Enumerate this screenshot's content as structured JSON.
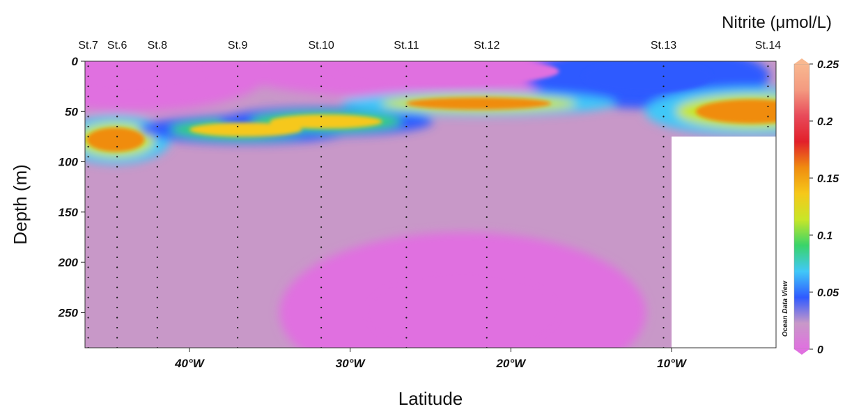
{
  "chart_data": {
    "type": "heatmap",
    "title": "Nitrite (μmol/L)",
    "xlabel": "Latitude",
    "ylabel": "Depth (m)",
    "watermark": "Ocean Data View",
    "x_range_deg_w": [
      46.5,
      3.5
    ],
    "y_range_m": [
      0,
      285
    ],
    "y_ticks": [
      {
        "value": 0,
        "label": "0"
      },
      {
        "value": 50,
        "label": "50"
      },
      {
        "value": 100,
        "label": "100"
      },
      {
        "value": 150,
        "label": "150"
      },
      {
        "value": 200,
        "label": "200"
      },
      {
        "value": 250,
        "label": "250"
      }
    ],
    "x_ticks": [
      {
        "value": 40,
        "label": "40°W"
      },
      {
        "value": 30,
        "label": "30°W"
      },
      {
        "value": 20,
        "label": "20°W"
      },
      {
        "value": 10,
        "label": "10°W"
      }
    ],
    "stations": [
      {
        "name": "St.7",
        "lon_w": 46.3
      },
      {
        "name": "St.6",
        "lon_w": 44.5
      },
      {
        "name": "St.8",
        "lon_w": 42.0
      },
      {
        "name": "St.9",
        "lon_w": 37.0
      },
      {
        "name": "St.10",
        "lon_w": 31.8
      },
      {
        "name": "St.11",
        "lon_w": 26.5
      },
      {
        "name": "St.12",
        "lon_w": 21.5
      },
      {
        "name": "St.13",
        "lon_w": 10.5
      },
      {
        "name": "St.14",
        "lon_w": 4.0
      }
    ],
    "colorbar": {
      "min": 0,
      "max": 0.25,
      "ticks": [
        {
          "value": 0,
          "label": "0"
        },
        {
          "value": 0.05,
          "label": "0.05"
        },
        {
          "value": 0.1,
          "label": "0.1"
        },
        {
          "value": 0.15,
          "label": "0.15"
        },
        {
          "value": 0.2,
          "label": "0.2"
        },
        {
          "value": 0.25,
          "label": "0.25"
        }
      ],
      "colors": [
        "#e070e0",
        "#c898c8",
        "#2f5aff",
        "#41c8f8",
        "#39d46a",
        "#c8e628",
        "#f6c81a",
        "#f08c10",
        "#e2202a",
        "#e84a5a",
        "#f49a80",
        "#f8b890"
      ]
    },
    "no_data_region": {
      "lon_w_min": 3.5,
      "lon_w_max": 10.0,
      "depth_min": 75,
      "depth_max": 285
    },
    "background_nitrite": 0.02,
    "features": [
      {
        "name": "surface-low-west",
        "lon_w": 43.5,
        "depth": 10,
        "rx": 4.5,
        "ry": 20,
        "value": 0.008
      },
      {
        "name": "surface-low-center",
        "lon_w": 24.0,
        "depth": 10,
        "rx": 7,
        "ry": 14,
        "value": 0.0
      },
      {
        "name": "surface-green-east",
        "lon_w": 11.5,
        "depth": 15,
        "rx": 4,
        "ry": 16,
        "value": 0.04
      },
      {
        "name": "max-west",
        "lon_w": 44.6,
        "depth": 78,
        "rx": 1.8,
        "ry": 12,
        "value": 0.16
      },
      {
        "name": "max-st9",
        "lon_w": 36.5,
        "depth": 68,
        "rx": 3.5,
        "ry": 7,
        "value": 0.14
      },
      {
        "name": "max-st10",
        "lon_w": 31.5,
        "depth": 60,
        "rx": 3.5,
        "ry": 7,
        "value": 0.13
      },
      {
        "name": "max-center",
        "lon_w": 22.0,
        "depth": 42,
        "rx": 4.5,
        "ry": 6,
        "value": 0.15
      },
      {
        "name": "max-east",
        "lon_w": 5.0,
        "depth": 50,
        "rx": 3.5,
        "ry": 12,
        "value": 0.15
      },
      {
        "name": "deep-low-center",
        "lon_w": 23.0,
        "depth": 250,
        "rx": 6,
        "ry": 40,
        "value": 0.005
      }
    ]
  }
}
